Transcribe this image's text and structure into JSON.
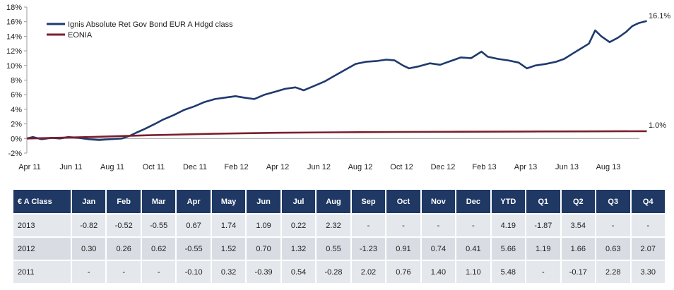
{
  "chart_data": {
    "type": "line",
    "title": "",
    "xlabel": "",
    "ylabel": "",
    "y_tick_labels": [
      "-2%",
      "0%",
      "2%",
      "4%",
      "6%",
      "8%",
      "10%",
      "12%",
      "14%",
      "16%",
      "18%"
    ],
    "ylim": [
      -2,
      18
    ],
    "x_tick_labels": [
      "Apr 11",
      "Jun 11",
      "Aug 11",
      "Oct 11",
      "Dec 11",
      "Feb 12",
      "Apr 12",
      "Jun 12",
      "Aug 12",
      "Oct 12",
      "Dec 12",
      "Feb 13",
      "Apr 13",
      "Jun 13",
      "Aug 13"
    ],
    "x_range_months": [
      0,
      30
    ],
    "legend_position": "top-left",
    "series": [
      {
        "name": "Ignis Absolute Ret Gov Bond EUR A Hdgd class",
        "color": "#1f3a6e",
        "end_label": "16.1%",
        "points": [
          [
            0,
            0
          ],
          [
            0.3,
            0.2
          ],
          [
            0.7,
            -0.1
          ],
          [
            1.2,
            0.1
          ],
          [
            1.6,
            0.0
          ],
          [
            2.0,
            0.2
          ],
          [
            2.5,
            0.1
          ],
          [
            3.0,
            -0.1
          ],
          [
            3.5,
            -0.2
          ],
          [
            4.0,
            -0.1
          ],
          [
            4.6,
            0.0
          ],
          [
            5.0,
            0.4
          ],
          [
            5.3,
            0.8
          ],
          [
            5.7,
            1.3
          ],
          [
            6.2,
            2.0
          ],
          [
            6.6,
            2.6
          ],
          [
            7.1,
            3.2
          ],
          [
            7.6,
            3.9
          ],
          [
            8.1,
            4.4
          ],
          [
            8.6,
            5.0
          ],
          [
            9.1,
            5.4
          ],
          [
            9.6,
            5.6
          ],
          [
            10.1,
            5.8
          ],
          [
            10.5,
            5.6
          ],
          [
            11.0,
            5.4
          ],
          [
            11.5,
            6.0
          ],
          [
            12.0,
            6.4
          ],
          [
            12.5,
            6.8
          ],
          [
            13.0,
            7.0
          ],
          [
            13.4,
            6.6
          ],
          [
            13.9,
            7.2
          ],
          [
            14.4,
            7.8
          ],
          [
            14.9,
            8.6
          ],
          [
            15.4,
            9.4
          ],
          [
            15.9,
            10.2
          ],
          [
            16.4,
            10.5
          ],
          [
            16.9,
            10.6
          ],
          [
            17.4,
            10.8
          ],
          [
            17.8,
            10.7
          ],
          [
            18.2,
            10.0
          ],
          [
            18.5,
            9.6
          ],
          [
            19.0,
            9.9
          ],
          [
            19.5,
            10.3
          ],
          [
            20.0,
            10.1
          ],
          [
            20.5,
            10.6
          ],
          [
            21.0,
            11.1
          ],
          [
            21.5,
            11.0
          ],
          [
            22.0,
            11.9
          ],
          [
            22.3,
            11.2
          ],
          [
            22.8,
            10.9
          ],
          [
            23.3,
            10.7
          ],
          [
            23.8,
            10.4
          ],
          [
            24.2,
            9.6
          ],
          [
            24.6,
            10.0
          ],
          [
            25.1,
            10.2
          ],
          [
            25.6,
            10.5
          ],
          [
            26.0,
            10.9
          ],
          [
            26.4,
            11.6
          ],
          [
            26.8,
            12.3
          ],
          [
            27.2,
            13.0
          ],
          [
            27.5,
            14.8
          ],
          [
            27.8,
            14.0
          ],
          [
            28.2,
            13.2
          ],
          [
            28.6,
            13.8
          ],
          [
            29.0,
            14.6
          ],
          [
            29.3,
            15.4
          ],
          [
            29.6,
            15.8
          ],
          [
            30.0,
            16.1
          ]
        ]
      },
      {
        "name": "EONIA",
        "color": "#7b1f2e",
        "end_label": "1.0%",
        "points": [
          [
            0,
            0
          ],
          [
            3,
            0.2
          ],
          [
            6,
            0.45
          ],
          [
            9,
            0.65
          ],
          [
            12,
            0.78
          ],
          [
            15,
            0.85
          ],
          [
            18,
            0.9
          ],
          [
            21,
            0.93
          ],
          [
            24,
            0.96
          ],
          [
            27,
            0.98
          ],
          [
            30,
            1.0
          ]
        ]
      }
    ]
  },
  "table": {
    "header": [
      "€ A Class",
      "Jan",
      "Feb",
      "Mar",
      "Apr",
      "May",
      "Jun",
      "Jul",
      "Aug",
      "Sep",
      "Oct",
      "Nov",
      "Dec",
      "YTD",
      "Q1",
      "Q2",
      "Q3",
      "Q4"
    ],
    "rows": [
      [
        "2013",
        "-0.82",
        "-0.52",
        "-0.55",
        "0.67",
        "1.74",
        "1.09",
        "0.22",
        "2.32",
        "-",
        "-",
        "-",
        "-",
        "4.19",
        "-1.87",
        "3.54",
        "-",
        "-"
      ],
      [
        "2012",
        "0.30",
        "0.26",
        "0.62",
        "-0.55",
        "1.52",
        "0.70",
        "1.32",
        "0.55",
        "-1.23",
        "0.91",
        "0.74",
        "0.41",
        "5.66",
        "1.19",
        "1.66",
        "0.63",
        "2.07"
      ],
      [
        "2011",
        "-",
        "-",
        "-",
        "-0.10",
        "0.32",
        "-0.39",
        "0.54",
        "-0.28",
        "2.02",
        "0.76",
        "1.40",
        "1.10",
        "5.48",
        "-",
        "-0.17",
        "2.28",
        "3.30"
      ]
    ]
  }
}
